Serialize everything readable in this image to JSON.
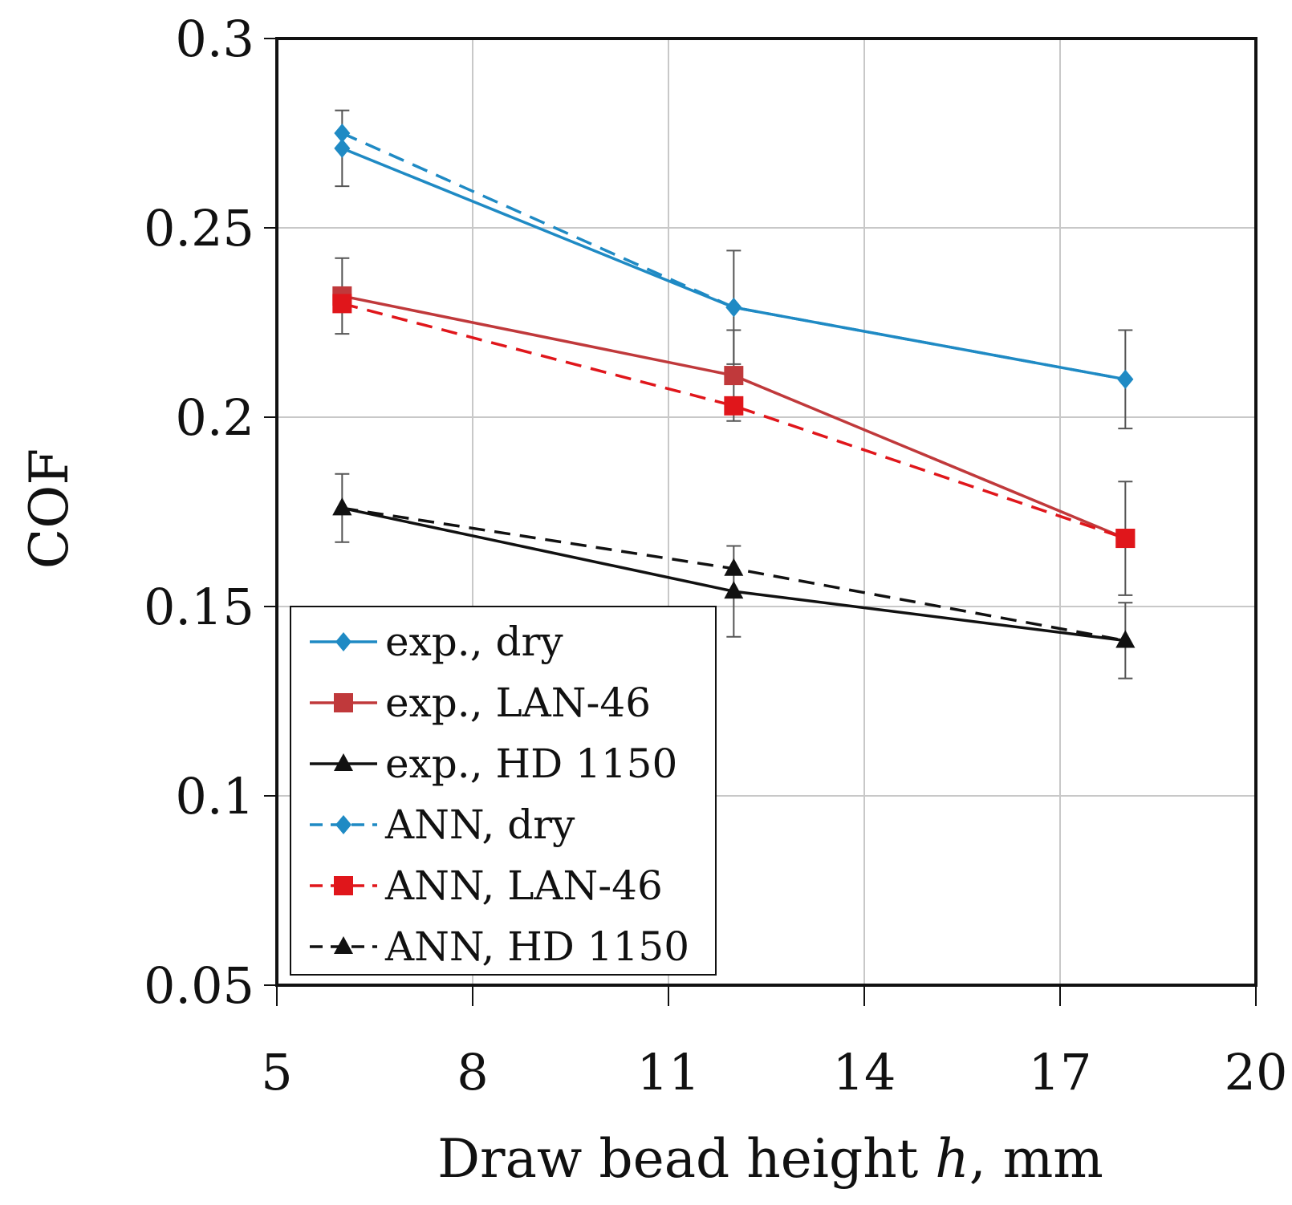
{
  "chart_data": {
    "type": "line",
    "title": "",
    "xlabel": "Draw bead height",
    "xlabel_var": "h",
    "xlabel_unit": ", mm",
    "ylabel": "COF",
    "xlim": [
      5,
      20
    ],
    "ylim": [
      0.05,
      0.3
    ],
    "xticks": [
      5,
      8,
      11,
      14,
      17,
      20
    ],
    "xtick_labels": [
      "5",
      "8",
      "11",
      "14",
      "17",
      "20"
    ],
    "yticks": [
      0.05,
      0.1,
      0.15,
      0.2,
      0.25,
      0.3
    ],
    "ytick_labels": [
      "0.05",
      "0.1",
      "0.15",
      "0.2",
      "0.25",
      "0.3"
    ],
    "grid": true,
    "legend_position": "bottom-left",
    "series": [
      {
        "name": "exp., dry",
        "color": "#1f8ac4",
        "dash": "solid",
        "marker": "diamond",
        "x": [
          6,
          12,
          18
        ],
        "y": [
          0.271,
          0.229,
          0.21
        ],
        "err": [
          0.01,
          0.015,
          0.013
        ]
      },
      {
        "name": "exp., LAN-46",
        "color": "#c0393b",
        "dash": "solid",
        "marker": "square",
        "x": [
          6,
          12,
          18
        ],
        "y": [
          0.232,
          0.211,
          0.168
        ],
        "err": [
          0.01,
          0.012,
          0.015
        ]
      },
      {
        "name": "exp., HD 1150",
        "color": "#111111",
        "dash": "solid",
        "marker": "triangle",
        "x": [
          6,
          12,
          18
        ],
        "y": [
          0.176,
          0.154,
          0.141
        ],
        "err": [
          0.009,
          0.012,
          0.01
        ]
      },
      {
        "name": "ANN, dry",
        "color": "#1f8ac4",
        "dash": "dashed",
        "marker": "diamond",
        "x": [
          6,
          12,
          18
        ],
        "y": [
          0.275,
          0.229,
          0.21
        ],
        "err": null
      },
      {
        "name": "ANN, LAN-46",
        "color": "#e0161b",
        "dash": "dashed",
        "marker": "square",
        "x": [
          6,
          12,
          18
        ],
        "y": [
          0.23,
          0.203,
          0.168
        ],
        "err": null
      },
      {
        "name": "ANN, HD 1150",
        "color": "#111111",
        "dash": "dashed",
        "marker": "triangle",
        "x": [
          6,
          12,
          18
        ],
        "y": [
          0.176,
          0.16,
          0.141
        ],
        "err": null
      }
    ]
  }
}
